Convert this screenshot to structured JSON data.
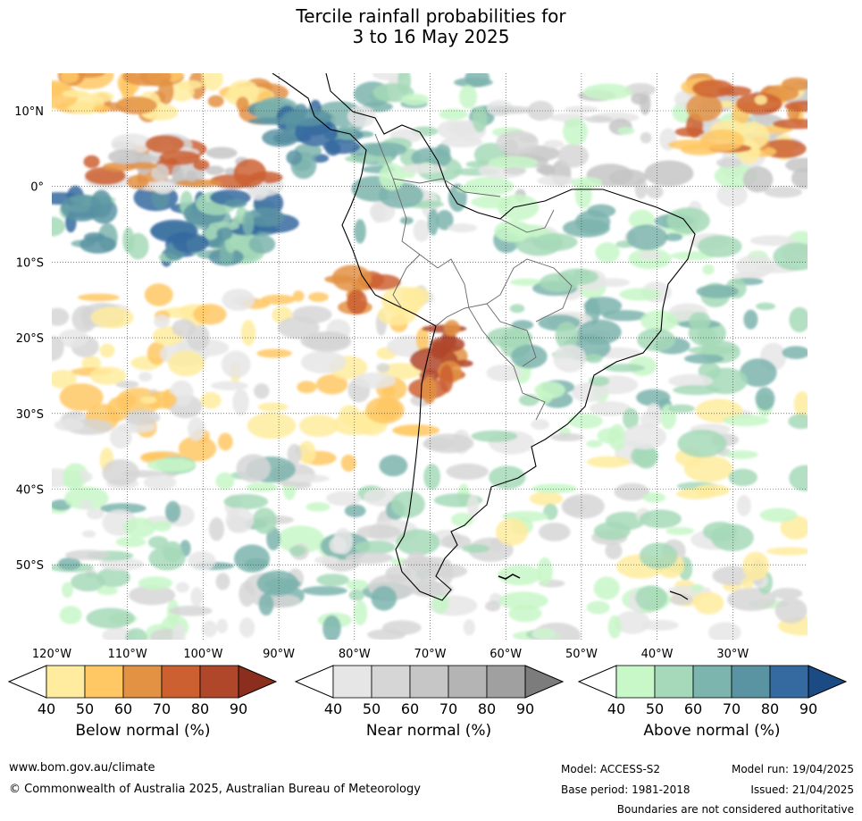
{
  "title": {
    "line1": "Tercile rainfall probabilities for",
    "line2": "3 to 16 May 2025"
  },
  "map": {
    "region": "South America",
    "lat_labels": [
      "10°N",
      "0°",
      "10°S",
      "20°S",
      "30°S",
      "40°S",
      "50°S"
    ],
    "lon_labels": [
      "120°W",
      "110°W",
      "100°W",
      "90°W",
      "80°W",
      "70°W",
      "60°W",
      "50°W",
      "40°W",
      "30°W"
    ]
  },
  "colorbars": [
    {
      "name": "Below normal (%)",
      "ticks": [
        "40",
        "50",
        "60",
        "70",
        "80",
        "90"
      ],
      "colors": [
        "#ffffff",
        "#ffec9e",
        "#ffc864",
        "#e39244",
        "#cd6031",
        "#b0472a",
        "#8c2e1e"
      ]
    },
    {
      "name": "Near normal (%)",
      "ticks": [
        "40",
        "50",
        "60",
        "70",
        "80",
        "90"
      ],
      "colors": [
        "#ffffff",
        "#e6e6e6",
        "#d6d6d6",
        "#c6c6c6",
        "#b4b4b4",
        "#a0a0a0",
        "#7c7c7c"
      ]
    },
    {
      "name": "Above normal (%)",
      "ticks": [
        "40",
        "50",
        "60",
        "70",
        "80",
        "90"
      ],
      "colors": [
        "#ffffff",
        "#c8f7c8",
        "#a6d9b9",
        "#7cb4ae",
        "#5a94a3",
        "#356aa0",
        "#1c4a82"
      ]
    }
  ],
  "footer": {
    "website": "www.bom.gov.au/climate",
    "copyright": "© Commonwealth of Australia 2025, Australian Bureau of Meteorology",
    "model": "Model: ACCESS-S2",
    "base_period": "Base period: 1981-2018",
    "model_run": "Model run: 19/04/2025",
    "issued": "Issued: 21/04/2025",
    "disclaimer": "Boundaries are not considered authoritative"
  }
}
